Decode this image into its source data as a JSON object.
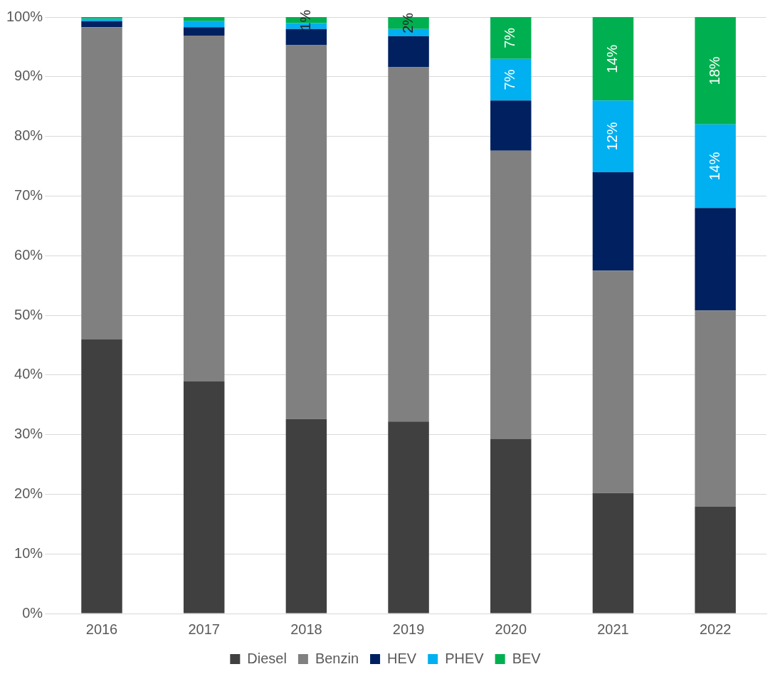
{
  "chart_data": {
    "type": "bar",
    "stacked": true,
    "grid": true,
    "legend": "bottom",
    "categories": [
      "2016",
      "2017",
      "2018",
      "2019",
      "2020",
      "2021",
      "2022"
    ],
    "ylim": [
      0,
      100
    ],
    "yticks": [
      {
        "value": 0,
        "label": "0%"
      },
      {
        "value": 10,
        "label": "10%"
      },
      {
        "value": 20,
        "label": "20%"
      },
      {
        "value": 30,
        "label": "30%"
      },
      {
        "value": 40,
        "label": "40%"
      },
      {
        "value": 50,
        "label": "50%"
      },
      {
        "value": 60,
        "label": "60%"
      },
      {
        "value": 70,
        "label": "70%"
      },
      {
        "value": 80,
        "label": "80%"
      },
      {
        "value": 90,
        "label": "90%"
      },
      {
        "value": 100,
        "label": "100%"
      }
    ],
    "series": [
      {
        "name": "Diesel",
        "color": "#404040",
        "values": [
          46,
          38.9,
          32.6,
          32.2,
          29.3,
          20.2,
          17.9
        ]
      },
      {
        "name": "Benzin",
        "color": "#808080",
        "values": [
          52.3,
          58,
          62.7,
          59.4,
          48.3,
          37.3,
          32.9
        ]
      },
      {
        "name": "HEV",
        "color": "#002060",
        "values": [
          1,
          1.4,
          2.7,
          5.2,
          8.4,
          16.5,
          17.2
        ]
      },
      {
        "name": "PHEV",
        "color": "#00b0f0",
        "values": [
          0.4,
          1,
          1,
          1.2,
          7,
          12,
          14
        ],
        "data_labels": true,
        "value_labels": [
          null,
          null,
          null,
          null,
          "7%",
          "12%",
          "14%"
        ]
      },
      {
        "name": "BEV",
        "color": "#00b050",
        "values": [
          0.3,
          0.7,
          1,
          2,
          7,
          14,
          18
        ],
        "data_labels": true,
        "value_labels": [
          null,
          null,
          "1%",
          "2%",
          "7%",
          "14%",
          "18%"
        ]
      }
    ]
  }
}
